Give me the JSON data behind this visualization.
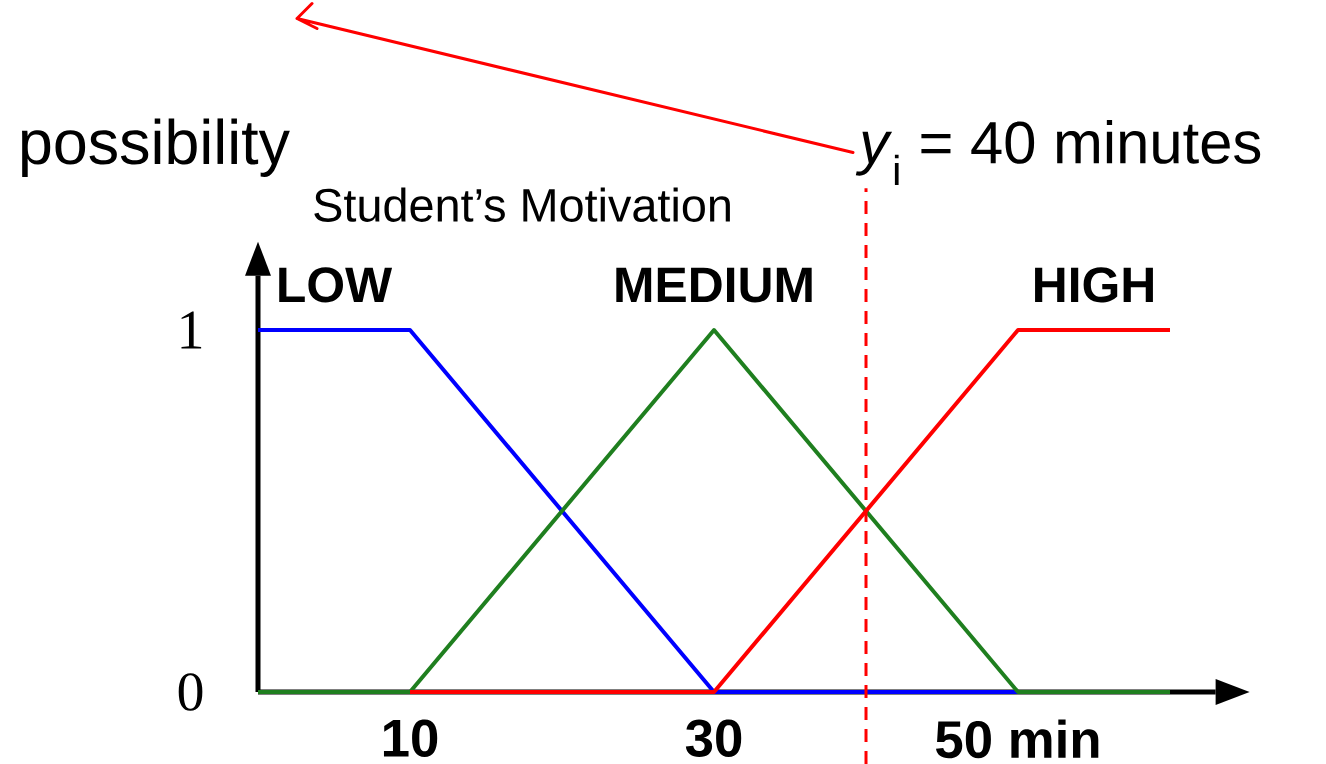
{
  "chart_data": {
    "type": "line",
    "title": "Student’s Motivation",
    "ylabel": "possibility",
    "series": [
      {
        "name": "LOW",
        "color": "#0000ff",
        "x": [
          0,
          10,
          30,
          50
        ],
        "values": [
          1,
          1,
          0,
          0
        ]
      },
      {
        "name": "MEDIUM",
        "color": "#1f7f1f",
        "x": [
          0,
          10,
          30,
          50,
          60
        ],
        "values": [
          0,
          0,
          1,
          0,
          0
        ]
      },
      {
        "name": "HIGH",
        "color": "#ff0000",
        "x": [
          10,
          30,
          50,
          60
        ],
        "values": [
          0,
          0,
          1,
          1
        ]
      }
    ],
    "xlim": [
      0,
      63
    ],
    "ylim": [
      0,
      1.15
    ],
    "xticks": [
      10,
      30,
      {
        "value": 50,
        "label": "50 min"
      }
    ],
    "yticks": [
      0,
      1
    ],
    "ref_lines": [
      {
        "axis": "x",
        "value": 40,
        "label": "*y*$_{i}$ = 40 minutes",
        "color": "#ff0000",
        "line_style": "dashed"
      }
    ],
    "line_style": "solid"
  }
}
